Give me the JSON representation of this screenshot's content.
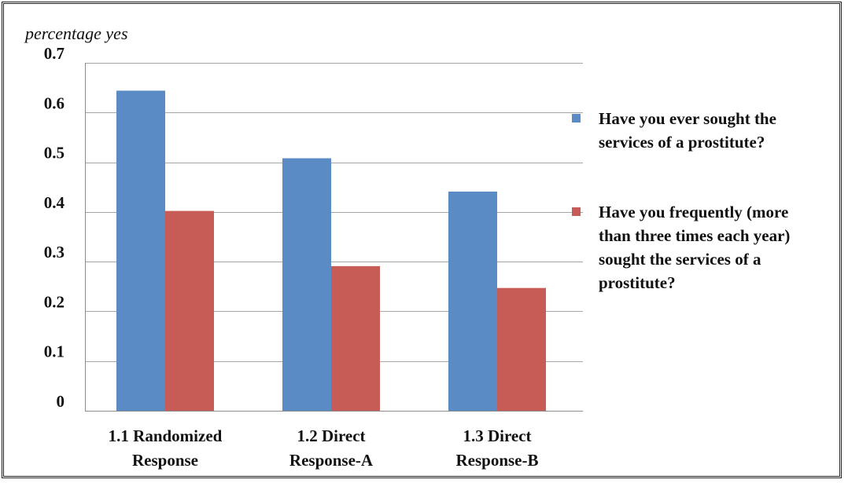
{
  "chart_data": {
    "type": "bar",
    "ylabel": "percentage yes",
    "ylim": [
      0,
      0.7
    ],
    "yticks": [
      0,
      0.1,
      0.2,
      0.3,
      0.4,
      0.5,
      0.6,
      0.7
    ],
    "ytick_labels": [
      "0",
      "0.1",
      "0.2",
      "0.3",
      "0.4",
      "0.5",
      "0.6",
      "0.7"
    ],
    "grid": true,
    "legend_position": "right",
    "categories": [
      [
        "1.1 Randomized",
        "Response"
      ],
      [
        "1.2 Direct",
        "Response-A"
      ],
      [
        "1.3 Direct",
        "Response-B"
      ]
    ],
    "series": [
      {
        "name": [
          "Have you ever sought the",
          "services of a prostitute?"
        ],
        "color": "#5B8BC5",
        "values": [
          0.644,
          0.508,
          0.441
        ]
      },
      {
        "name": [
          "Have you frequently (more",
          "than three times each year)",
          "sought the services of a",
          "prostitute?"
        ],
        "color": "#C75B56",
        "values": [
          0.402,
          0.291,
          0.247
        ]
      }
    ]
  }
}
